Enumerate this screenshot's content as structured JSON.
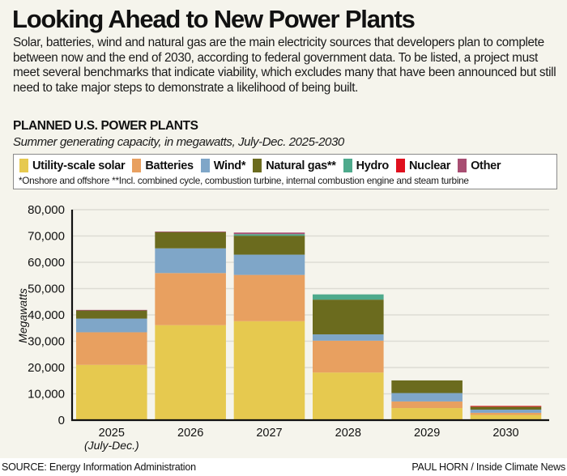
{
  "title": "Looking Ahead to New Power Plants",
  "intro": "Solar, batteries, wind and natural gas are the main electricity sources that developers plan to complete between now and the end of 2030, according to federal government data. To be listed, a project must meet several benchmarks that indicate viability, which excludes many that have been announced but still need to take major steps to demonstrate a likelihood of being built.",
  "subhead": "PLANNED U.S. POWER PLANTS",
  "subtitle": "Summer generating capacity, in megawatts, July-Dec. 2025-2030",
  "legend": {
    "items": [
      {
        "label": "Utility-scale solar",
        "color": "#e6c94f"
      },
      {
        "label": "Batteries",
        "color": "#e8a060"
      },
      {
        "label": "Wind*",
        "color": "#7fa6c8"
      },
      {
        "label": "Natural gas**",
        "color": "#6b6b1e"
      },
      {
        "label": "Hydro",
        "color": "#4eaa8c"
      },
      {
        "label": "Nuclear",
        "color": "#e0101e"
      },
      {
        "label": "Other",
        "color": "#a84e72"
      }
    ],
    "note": "*Onshore and offshore   **Incl. combined cycle, combustion turbine, internal combustion engine and steam turbine"
  },
  "footer": {
    "source": "SOURCE: Energy Information Administration",
    "credit": "PAUL HORN / Inside Climate News"
  },
  "chart_data": {
    "type": "bar",
    "stacked": true,
    "title": "PLANNED U.S. POWER PLANTS",
    "subtitle": "Summer generating capacity, in megawatts, July-Dec. 2025-2030",
    "xlabel": "",
    "ylabel": "Megawatts",
    "ylim": [
      0,
      80000
    ],
    "yticks": [
      0,
      10000,
      20000,
      30000,
      40000,
      50000,
      60000,
      70000,
      80000
    ],
    "ytick_labels": [
      "0",
      "10,000",
      "20,000",
      "30,000",
      "40,000",
      "50,000",
      "60,000",
      "70,000",
      "80,000"
    ],
    "grid": true,
    "legend_position": "top",
    "categories": [
      "2025",
      "2026",
      "2027",
      "2028",
      "2029",
      "2030"
    ],
    "category_sublabels": [
      "(July-Dec.)",
      "",
      "",
      "",
      "",
      ""
    ],
    "series": [
      {
        "name": "Utility-scale solar",
        "color": "#e6c94f",
        "values": [
          21000,
          36100,
          37600,
          18100,
          4600,
          2000
        ]
      },
      {
        "name": "Batteries",
        "color": "#e8a060",
        "values": [
          12400,
          19800,
          17600,
          12100,
          2500,
          800
        ]
      },
      {
        "name": "Wind*",
        "color": "#7fa6c8",
        "values": [
          5200,
          9400,
          7700,
          2400,
          3200,
          1200
        ]
      },
      {
        "name": "Natural gas**",
        "color": "#6b6b1e",
        "values": [
          3100,
          6200,
          7200,
          13200,
          4800,
          1100
        ]
      },
      {
        "name": "Hydro",
        "color": "#4eaa8c",
        "values": [
          0,
          0,
          600,
          2000,
          0,
          0
        ]
      },
      {
        "name": "Nuclear",
        "color": "#e0101e",
        "values": [
          0,
          0,
          0,
          0,
          0,
          300
        ]
      },
      {
        "name": "Other",
        "color": "#a84e72",
        "values": [
          200,
          200,
          600,
          0,
          0,
          0
        ]
      }
    ]
  }
}
